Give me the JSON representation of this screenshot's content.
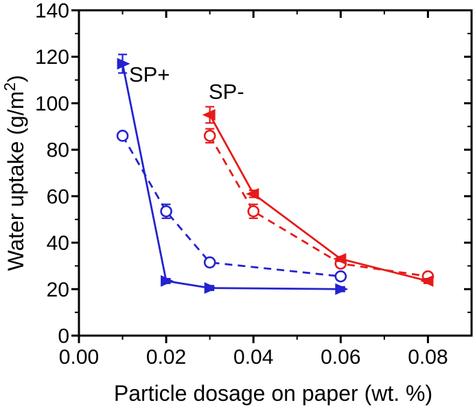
{
  "chart_data": {
    "type": "line",
    "title": "",
    "xlabel": "Particle dosage on paper (wt. %)",
    "ylabel": "Water uptake (g/m²)",
    "ylabel_parts": {
      "prefix": "Water uptake (g/m",
      "sup": "2",
      "suffix": ")"
    },
    "xlim": [
      0,
      0.09
    ],
    "ylim": [
      0,
      140
    ],
    "grid": false,
    "legend_position": "none (inline text annotations)",
    "x_axis": {
      "major_ticks": [
        0.0,
        0.02,
        0.04,
        0.06,
        0.08
      ],
      "tick_labels": [
        "0.00",
        "0.02",
        "0.04",
        "0.06",
        "0.08"
      ],
      "minor_ticks": [
        0.01,
        0.03,
        0.05,
        0.07
      ]
    },
    "y_axis": {
      "major_ticks": [
        0,
        20,
        40,
        60,
        80,
        100,
        120,
        140
      ],
      "tick_labels": [
        "0",
        "20",
        "40",
        "60",
        "80",
        "100",
        "120",
        "140"
      ],
      "minor_ticks": [
        10,
        30,
        50,
        70,
        90,
        110,
        130
      ]
    },
    "annotations": [
      {
        "text": "SP+",
        "x": 0.0113,
        "y": 110,
        "color": "#000000"
      },
      {
        "text": "SP-",
        "x": 0.0296,
        "y": 102,
        "color": "#000000"
      }
    ],
    "colors": {
      "sp_plus": "#2323cf",
      "sp_minus": "#e61a1a",
      "axis": "#000000"
    },
    "series": [
      {
        "name": "SP+ coated (filled triangles, solid line)",
        "color": "#2323cf",
        "line": "solid",
        "marker": "triangle-right",
        "x": [
          0.01,
          0.02,
          0.03,
          0.06
        ],
        "y": [
          117,
          23.5,
          20.5,
          20
        ],
        "yerr": [
          4,
          1,
          1,
          1
        ]
      },
      {
        "name": "SP+ open circles, dashed line",
        "color": "#2323cf",
        "line": "dashed",
        "marker": "circle-open",
        "x": [
          0.01,
          0.02,
          0.03,
          0.06
        ],
        "y": [
          86,
          53.5,
          31.5,
          25.5
        ],
        "yerr": [
          1,
          3,
          1.5,
          1.5
        ]
      },
      {
        "name": "SP- open circles, dashed line",
        "color": "#e61a1a",
        "line": "dashed",
        "marker": "circle-open",
        "x": [
          0.03,
          0.04,
          0.06,
          0.08
        ],
        "y": [
          86,
          53.5,
          31,
          25.5
        ],
        "yerr": [
          3,
          3,
          1.5,
          1.5
        ]
      },
      {
        "name": "SP- coated (filled triangles, solid line)",
        "color": "#e61a1a",
        "line": "solid",
        "marker": "triangle-left",
        "x": [
          0.03,
          0.04,
          0.06,
          0.08
        ],
        "y": [
          95,
          61,
          33,
          23.5
        ],
        "yerr": [
          3.5,
          1.5,
          1,
          1
        ]
      }
    ]
  }
}
